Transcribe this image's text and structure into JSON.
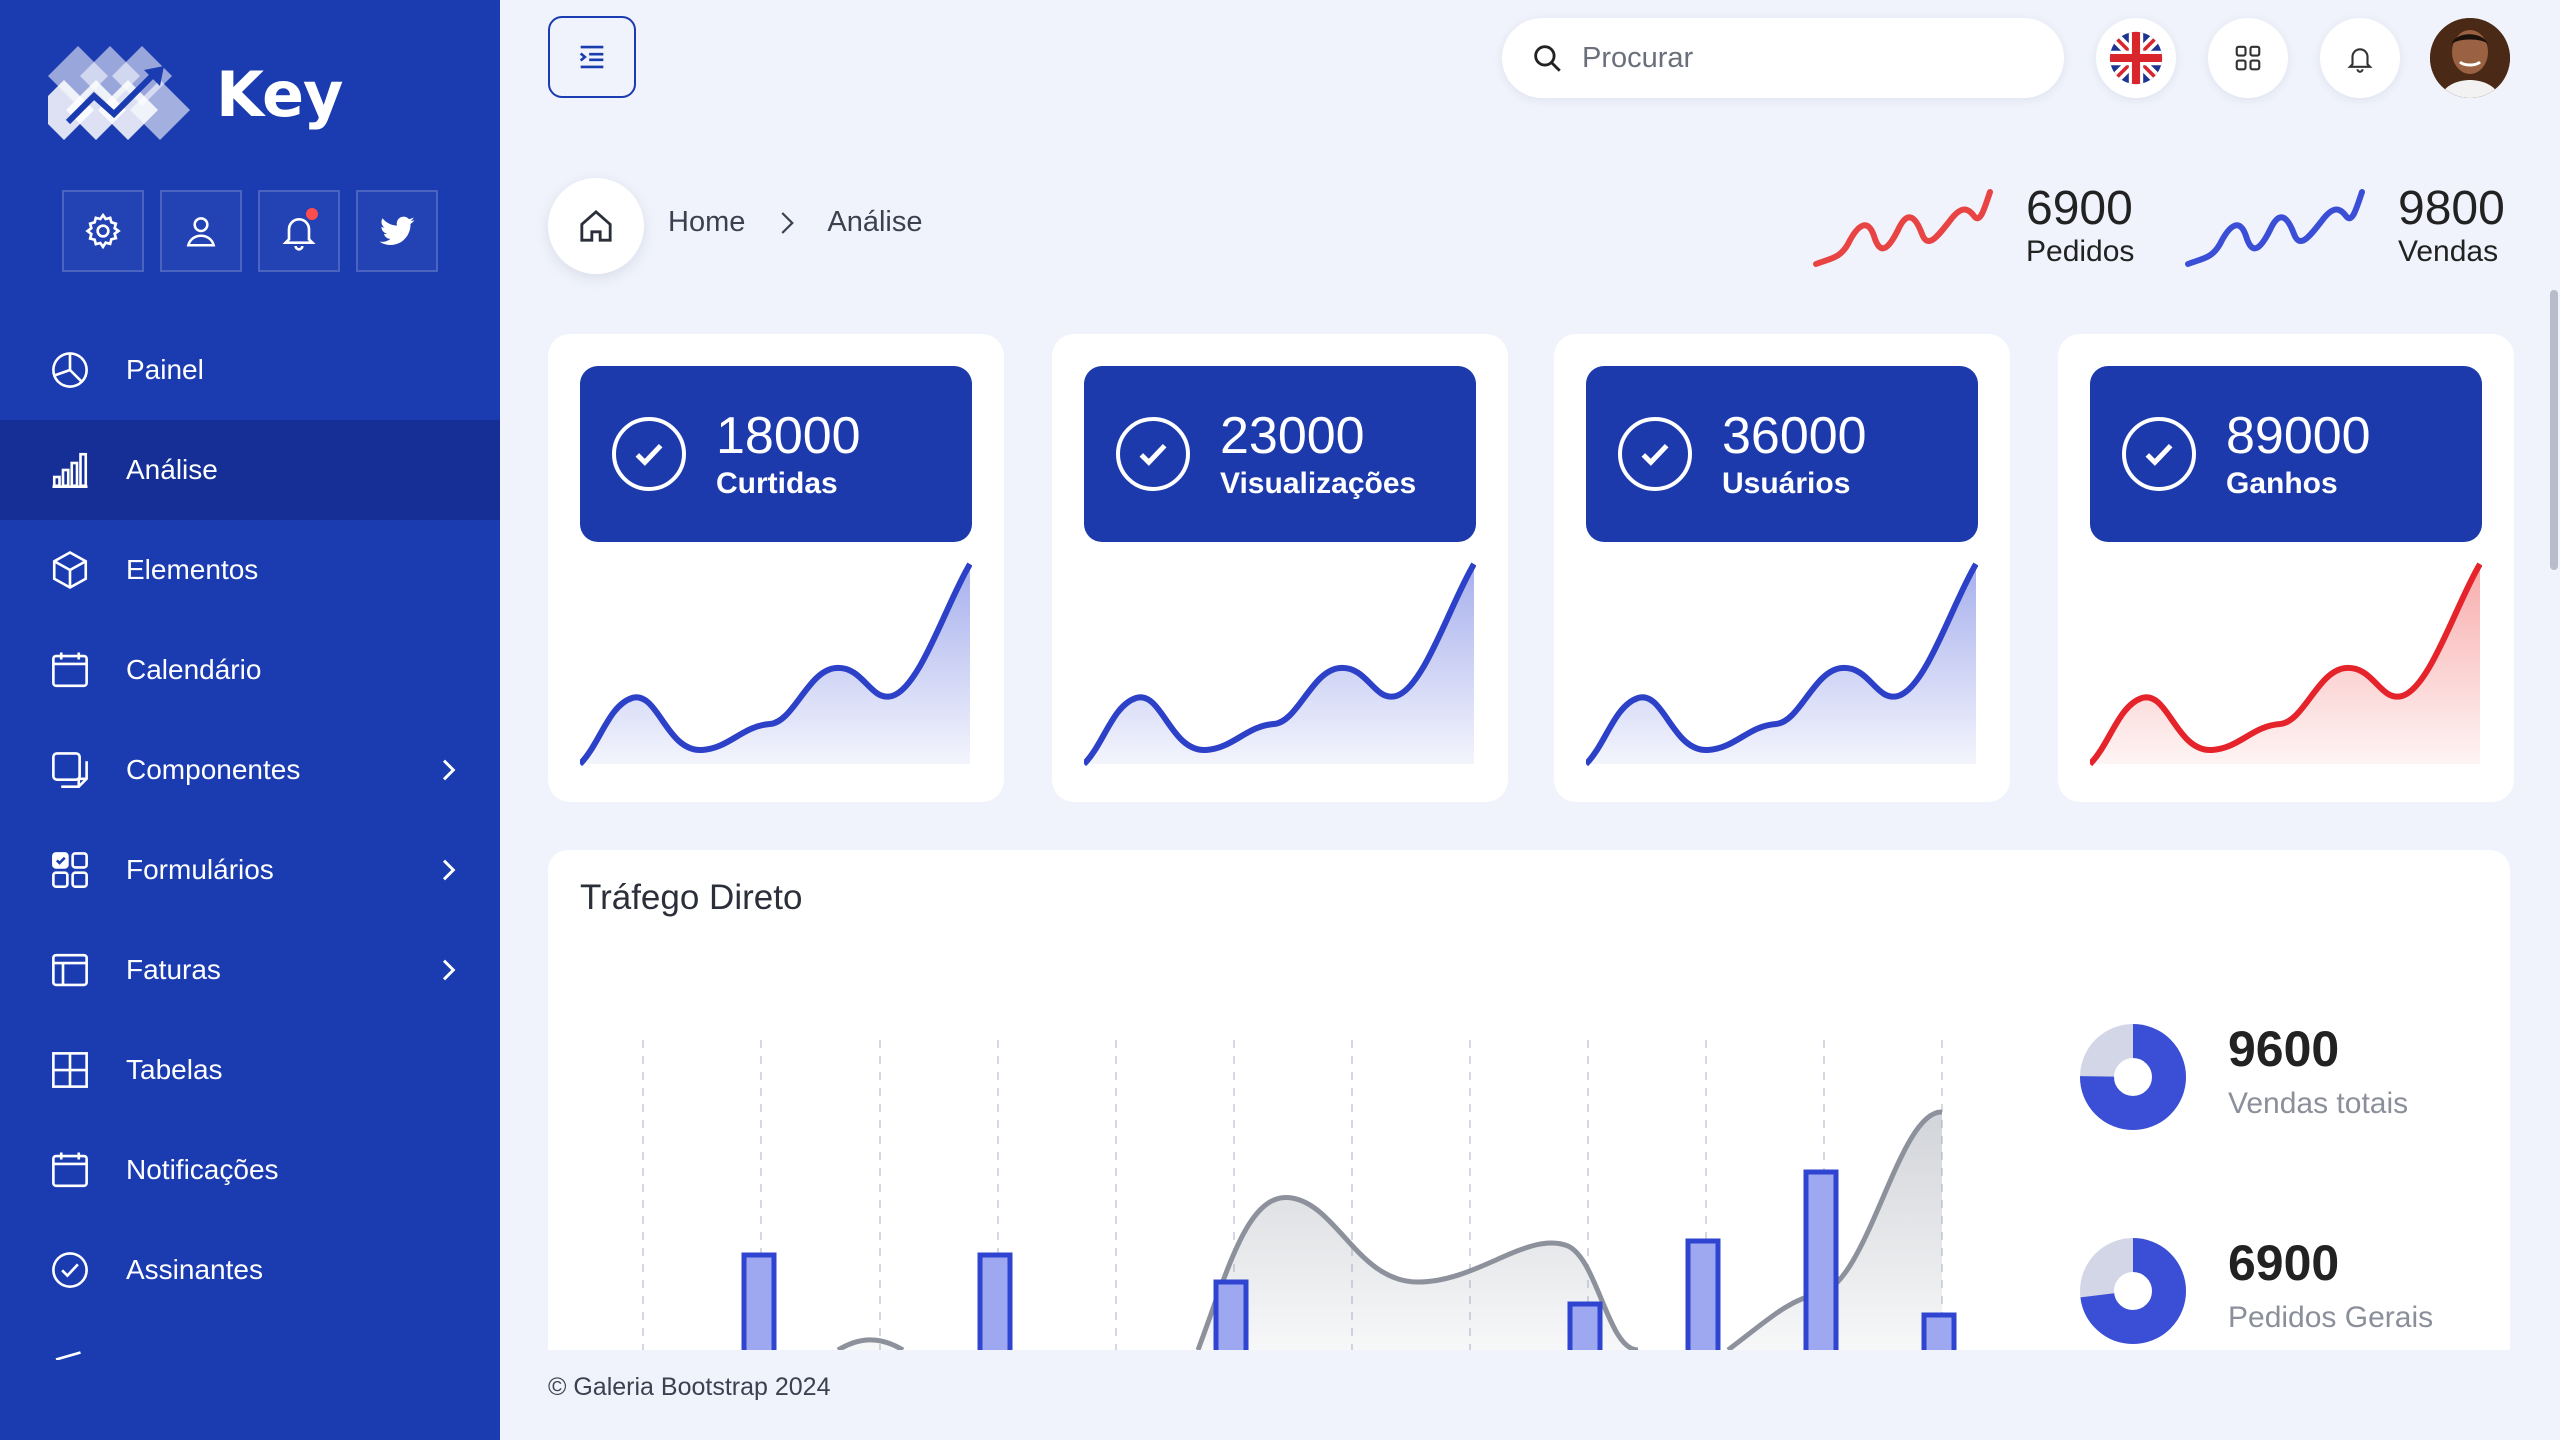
{
  "brand": {
    "name": "Key"
  },
  "sidebar": {
    "quick": [
      "gear-icon",
      "user-icon",
      "bell-icon",
      "twitter-icon"
    ],
    "items": [
      {
        "label": "Painel",
        "icon": "pie-chart-icon"
      },
      {
        "label": "Análise",
        "icon": "bar-chart-icon",
        "active": true
      },
      {
        "label": "Elementos",
        "icon": "cube-icon"
      },
      {
        "label": "Calendário",
        "icon": "calendar-icon"
      },
      {
        "label": "Componentes",
        "icon": "pages-icon",
        "submenu": true
      },
      {
        "label": "Formulários",
        "icon": "grid-check-icon",
        "submenu": true
      },
      {
        "label": "Faturas",
        "icon": "layout-icon",
        "submenu": true
      },
      {
        "label": "Tabelas",
        "icon": "table-icon"
      },
      {
        "label": "Notificações",
        "icon": "calendar-icon"
      },
      {
        "label": "Assinantes",
        "icon": "check-circle-icon"
      }
    ]
  },
  "topbar": {
    "search_placeholder": "Procurar"
  },
  "breadcrumb": {
    "home": "Home",
    "current": "Análise"
  },
  "mini_stats": [
    {
      "value": "6900",
      "label": "Pedidos",
      "color": "#e84444"
    },
    {
      "value": "9800",
      "label": "Vendas",
      "color": "#3a4fd6"
    }
  ],
  "cards": [
    {
      "value": "18000",
      "label": "Curtidas",
      "color": "#2c40c8"
    },
    {
      "value": "23000",
      "label": "Visualizações",
      "color": "#2c40c8"
    },
    {
      "value": "36000",
      "label": "Usuários",
      "color": "#2c40c8"
    },
    {
      "value": "89000",
      "label": "Ganhos",
      "color": "#e5232b"
    }
  ],
  "traffic": {
    "title": "Tráfego Direto",
    "stats": [
      {
        "value": "9600",
        "label": "Vendas totais"
      },
      {
        "value": "6900",
        "label": "Pedidos Gerais"
      }
    ]
  },
  "footer": {
    "text": "© Galeria Bootstrap 2024"
  },
  "colors": {
    "sidebar": "#1b3bb0",
    "sidebar_active": "#162f96",
    "accent": "#1d3aad",
    "red": "#e84444"
  }
}
